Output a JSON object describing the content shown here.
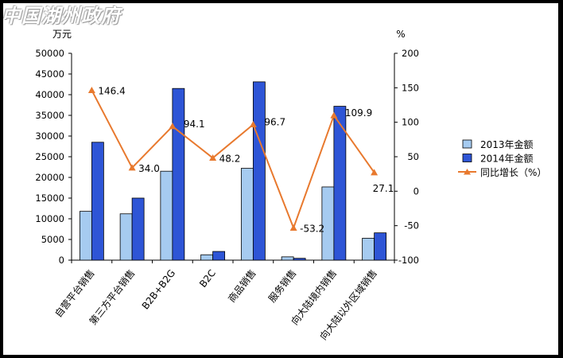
{
  "watermark": "中国湖州政府",
  "chart_data": {
    "type": "bar",
    "categories": [
      "自营平台销售",
      "第三方平台销售",
      "B2B+B2G",
      "B2C",
      "商品销售",
      "服务销售",
      "向大陆境内销售",
      "向大陆以外区域销售"
    ],
    "series": [
      {
        "name": "2013年金额",
        "type": "bar",
        "axis": "left",
        "color": "#a6cbf0",
        "values": [
          11800,
          11200,
          21500,
          1300,
          22200,
          800,
          17700,
          5300
        ]
      },
      {
        "name": "2014年金额",
        "type": "bar",
        "axis": "left",
        "color": "#2e55d6",
        "values": [
          28500,
          15000,
          41500,
          2100,
          43100,
          450,
          37200,
          6600
        ]
      },
      {
        "name": "同比增长（%）",
        "type": "line",
        "axis": "right",
        "color": "#e8792e",
        "values": [
          146.4,
          34.0,
          94.1,
          48.2,
          96.7,
          -53.2,
          109.9,
          27.1
        ]
      }
    ],
    "data_labels": [
      "146.4",
      "34.0",
      "94.1",
      "48.2",
      "96.7",
      "-53.2",
      "109.9",
      "27.1"
    ],
    "y_left": {
      "unit": "万元",
      "min": 0,
      "max": 50000,
      "ticks": [
        "0",
        "5000",
        "10000",
        "15000",
        "20000",
        "25000",
        "30000",
        "35000",
        "40000",
        "45000",
        "50000"
      ]
    },
    "y_right": {
      "unit": "%",
      "min": -100,
      "max": 200,
      "ticks": [
        "-100",
        "-50",
        "0",
        "50",
        "100",
        "150",
        "200"
      ]
    },
    "legend_position": "right",
    "grid": false
  }
}
